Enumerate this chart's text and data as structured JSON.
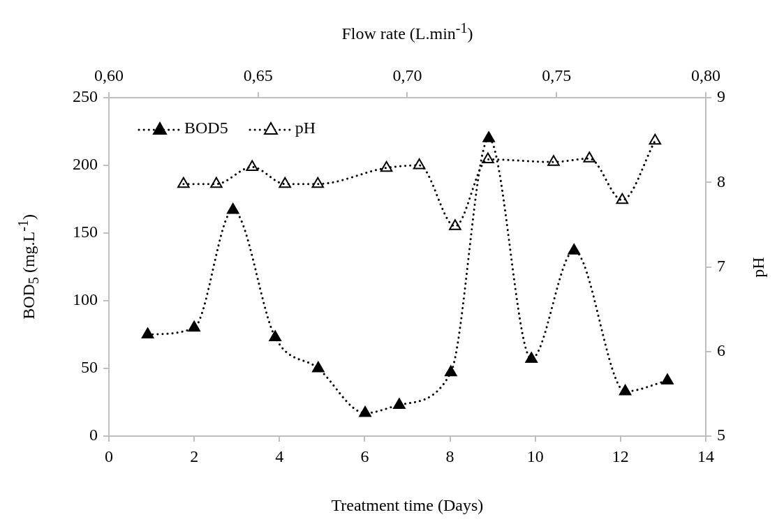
{
  "chart_data": {
    "type": "line",
    "xlabel": "Treatment time (Days)",
    "x2label": "Flow rate (L.min$^{-1}$)",
    "ylabel": "BOD$_{5}$ (mg.L$^{-1}$)",
    "y2label": "pH",
    "xlim": [
      0,
      14
    ],
    "xticks": [
      0,
      2,
      4,
      6,
      8,
      10,
      12,
      14
    ],
    "x2lim": [
      0.6,
      0.8
    ],
    "x2ticks": [
      {
        "value": 0.6,
        "label": "0,60"
      },
      {
        "value": 0.65,
        "label": "0,65"
      },
      {
        "value": 0.7,
        "label": "0,70"
      },
      {
        "value": 0.75,
        "label": "0,75"
      },
      {
        "value": 0.8,
        "label": "0,80"
      }
    ],
    "ylim": [
      0,
      250
    ],
    "yticks": [
      0,
      50,
      100,
      150,
      200,
      250
    ],
    "y2lim": [
      5,
      9
    ],
    "y2ticks": [
      5,
      6,
      7,
      8,
      9
    ],
    "grid": false,
    "legend": "top left",
    "marker": "triangle",
    "line_style": "dotted",
    "series": [
      {
        "name": "BOD5",
        "color": "#000000",
        "x": [
          0.91,
          2.0,
          2.91,
          3.9,
          4.91,
          6.01,
          6.81,
          8.02,
          8.91,
          9.91,
          10.91,
          12.11,
          13.1
        ],
        "values": [
          75,
          80,
          167,
          73,
          50,
          17,
          23,
          47,
          220,
          57,
          137,
          33,
          41
        ]
      },
      {
        "name": "pH",
        "color": "#000000",
        "axis": "y2",
        "x": [
          1.75,
          2.52,
          3.36,
          4.13,
          4.9,
          6.51,
          7.28,
          8.12,
          8.89,
          10.43,
          11.27,
          12.04,
          12.81
        ],
        "values": [
          7.98,
          7.98,
          8.18,
          7.98,
          7.98,
          8.17,
          8.2,
          7.48,
          8.27,
          8.24,
          8.28,
          7.79,
          8.49
        ]
      }
    ]
  }
}
